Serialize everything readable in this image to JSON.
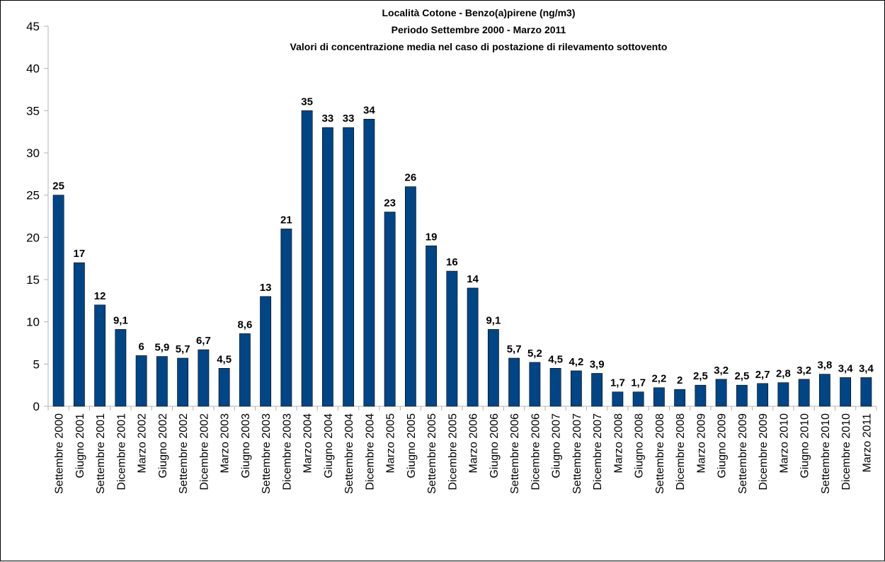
{
  "chart_data": {
    "type": "bar",
    "title": "Località Cotone - Benzo(a)pirene (ng/m3)",
    "subtitle": "Periodo Settembre 2000 - Marzo 2011",
    "subtitle2": "Valori di concentrazione media nel caso di postazione di rilevamento sottovento",
    "xlabel": "",
    "ylabel": "",
    "ylim": [
      0,
      45
    ],
    "yticks": [
      0,
      5,
      10,
      15,
      20,
      25,
      30,
      35,
      40,
      45
    ],
    "grid": false,
    "legend": "none",
    "bar_color": "#004586",
    "categories": [
      "Settembre 2000",
      "Giugno 2001",
      "Settembre 2001",
      "Dicembre 2001",
      "Marzo 2002",
      "Giugno 2002",
      "Settembre 2002",
      "Dicembre 2002",
      "Marzo 2003",
      "Giugno 2003",
      "Settembre 2003",
      "Dicembre 2003",
      "Marzo 2004",
      "Giugno 2004",
      "Settembre 2004",
      "Dicembre 2004",
      "Marzo 2005",
      "Giugno 2005",
      "Settembre 2005",
      "Dicembre 2005",
      "Marzo 2006",
      "Giugno 2006",
      "Settembre 2006",
      "Dicembre 2006",
      "Giugno 2007",
      "Settembre 2007",
      "Dicembre 2007",
      "Marzo 2008",
      "Giugno 2008",
      "Settembre 2008",
      "Dicembre 2008",
      "Marzo 2009",
      "Giugno 2009",
      "Settembre 2009",
      "Dicembre 2009",
      "Marzo 2010",
      "Giugno 2010",
      "Settembre 2010",
      "Dicembre 2010",
      "Marzo 2011"
    ],
    "values": [
      25,
      17,
      12,
      9.1,
      6,
      5.9,
      5.7,
      6.7,
      4.5,
      8.6,
      13,
      21,
      35,
      33,
      33,
      34,
      23,
      26,
      19,
      16,
      14,
      9.1,
      5.7,
      5.2,
      4.5,
      4.2,
      3.9,
      1.7,
      1.7,
      2.2,
      2,
      2.5,
      3.2,
      2.5,
      2.7,
      2.8,
      3.2,
      3.8,
      3.4,
      3.4
    ],
    "data_labels": [
      "25",
      "17",
      "12",
      "9,1",
      "6",
      "5,9",
      "5,7",
      "6,7",
      "4,5",
      "8,6",
      "13",
      "21",
      "35",
      "33",
      "33",
      "34",
      "23",
      "26",
      "19",
      "16",
      "14",
      "9,1",
      "5,7",
      "5,2",
      "4,5",
      "4,2",
      "3,9",
      "1,7",
      "1,7",
      "2,2",
      "2",
      "2,5",
      "3,2",
      "2,5",
      "2,7",
      "2,8",
      "3,2",
      "3,8",
      "3,4",
      "3,4"
    ]
  }
}
